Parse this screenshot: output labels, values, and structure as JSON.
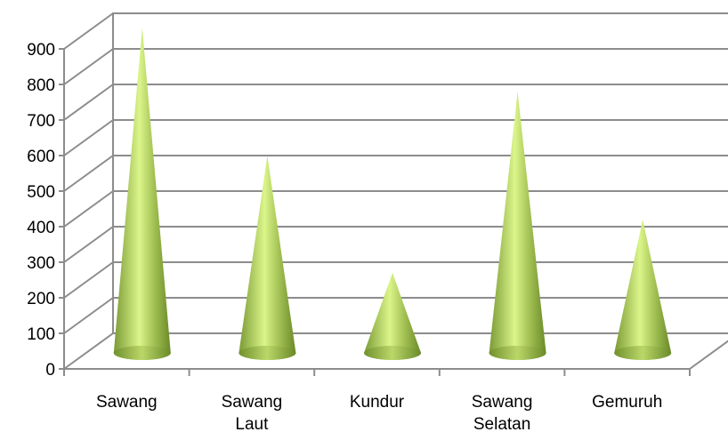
{
  "chart_data": {
    "type": "bar",
    "style": "3d-cone",
    "categories": [
      [
        "Sawang"
      ],
      [
        "Sawang",
        "Laut"
      ],
      [
        "Kundur"
      ],
      [
        "Sawang",
        "Selatan"
      ],
      [
        "Gemuruh"
      ]
    ],
    "values": [
      910,
      550,
      220,
      730,
      370
    ],
    "yticks": [
      0,
      100,
      200,
      300,
      400,
      500,
      600,
      700,
      800,
      900
    ],
    "ylim": [
      0,
      900
    ],
    "grid": true,
    "legend": "none",
    "colors": {
      "cone_light": "#e6ff99",
      "cone_mid": "#a9c75a",
      "cone_dark": "#6f8f2c",
      "grid": "#8c8c8c"
    }
  }
}
